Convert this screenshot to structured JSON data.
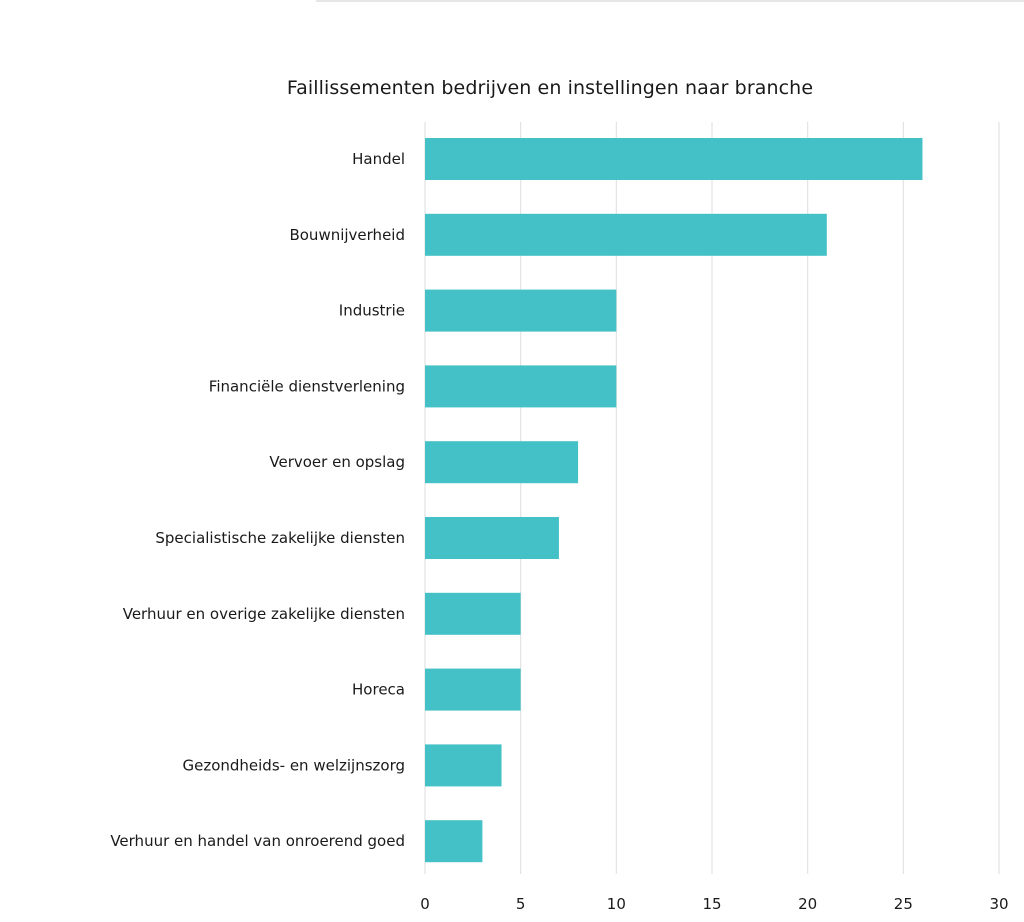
{
  "chart_data": {
    "type": "bar",
    "orientation": "horizontal",
    "title": "Faillissementen bedrijven en instellingen naar branche",
    "categories": [
      "Handel",
      "Bouwnijverheid",
      "Industrie",
      "Financiële dienstverlening",
      "Vervoer en opslag",
      "Specialistische zakelijke diensten",
      "Verhuur en overige zakelijke diensten",
      "Horeca",
      "Gezondheids- en welzijnszorg",
      "Verhuur en handel van onroerend goed"
    ],
    "values": [
      26,
      21,
      10,
      10,
      8,
      7,
      5,
      5,
      4,
      3
    ],
    "xlim": [
      0,
      30
    ],
    "xticks": [
      "0",
      "5",
      "10",
      "15",
      "20",
      "25",
      "30"
    ],
    "grid": true,
    "legend": "none",
    "bar_color": "#43c1c6"
  }
}
